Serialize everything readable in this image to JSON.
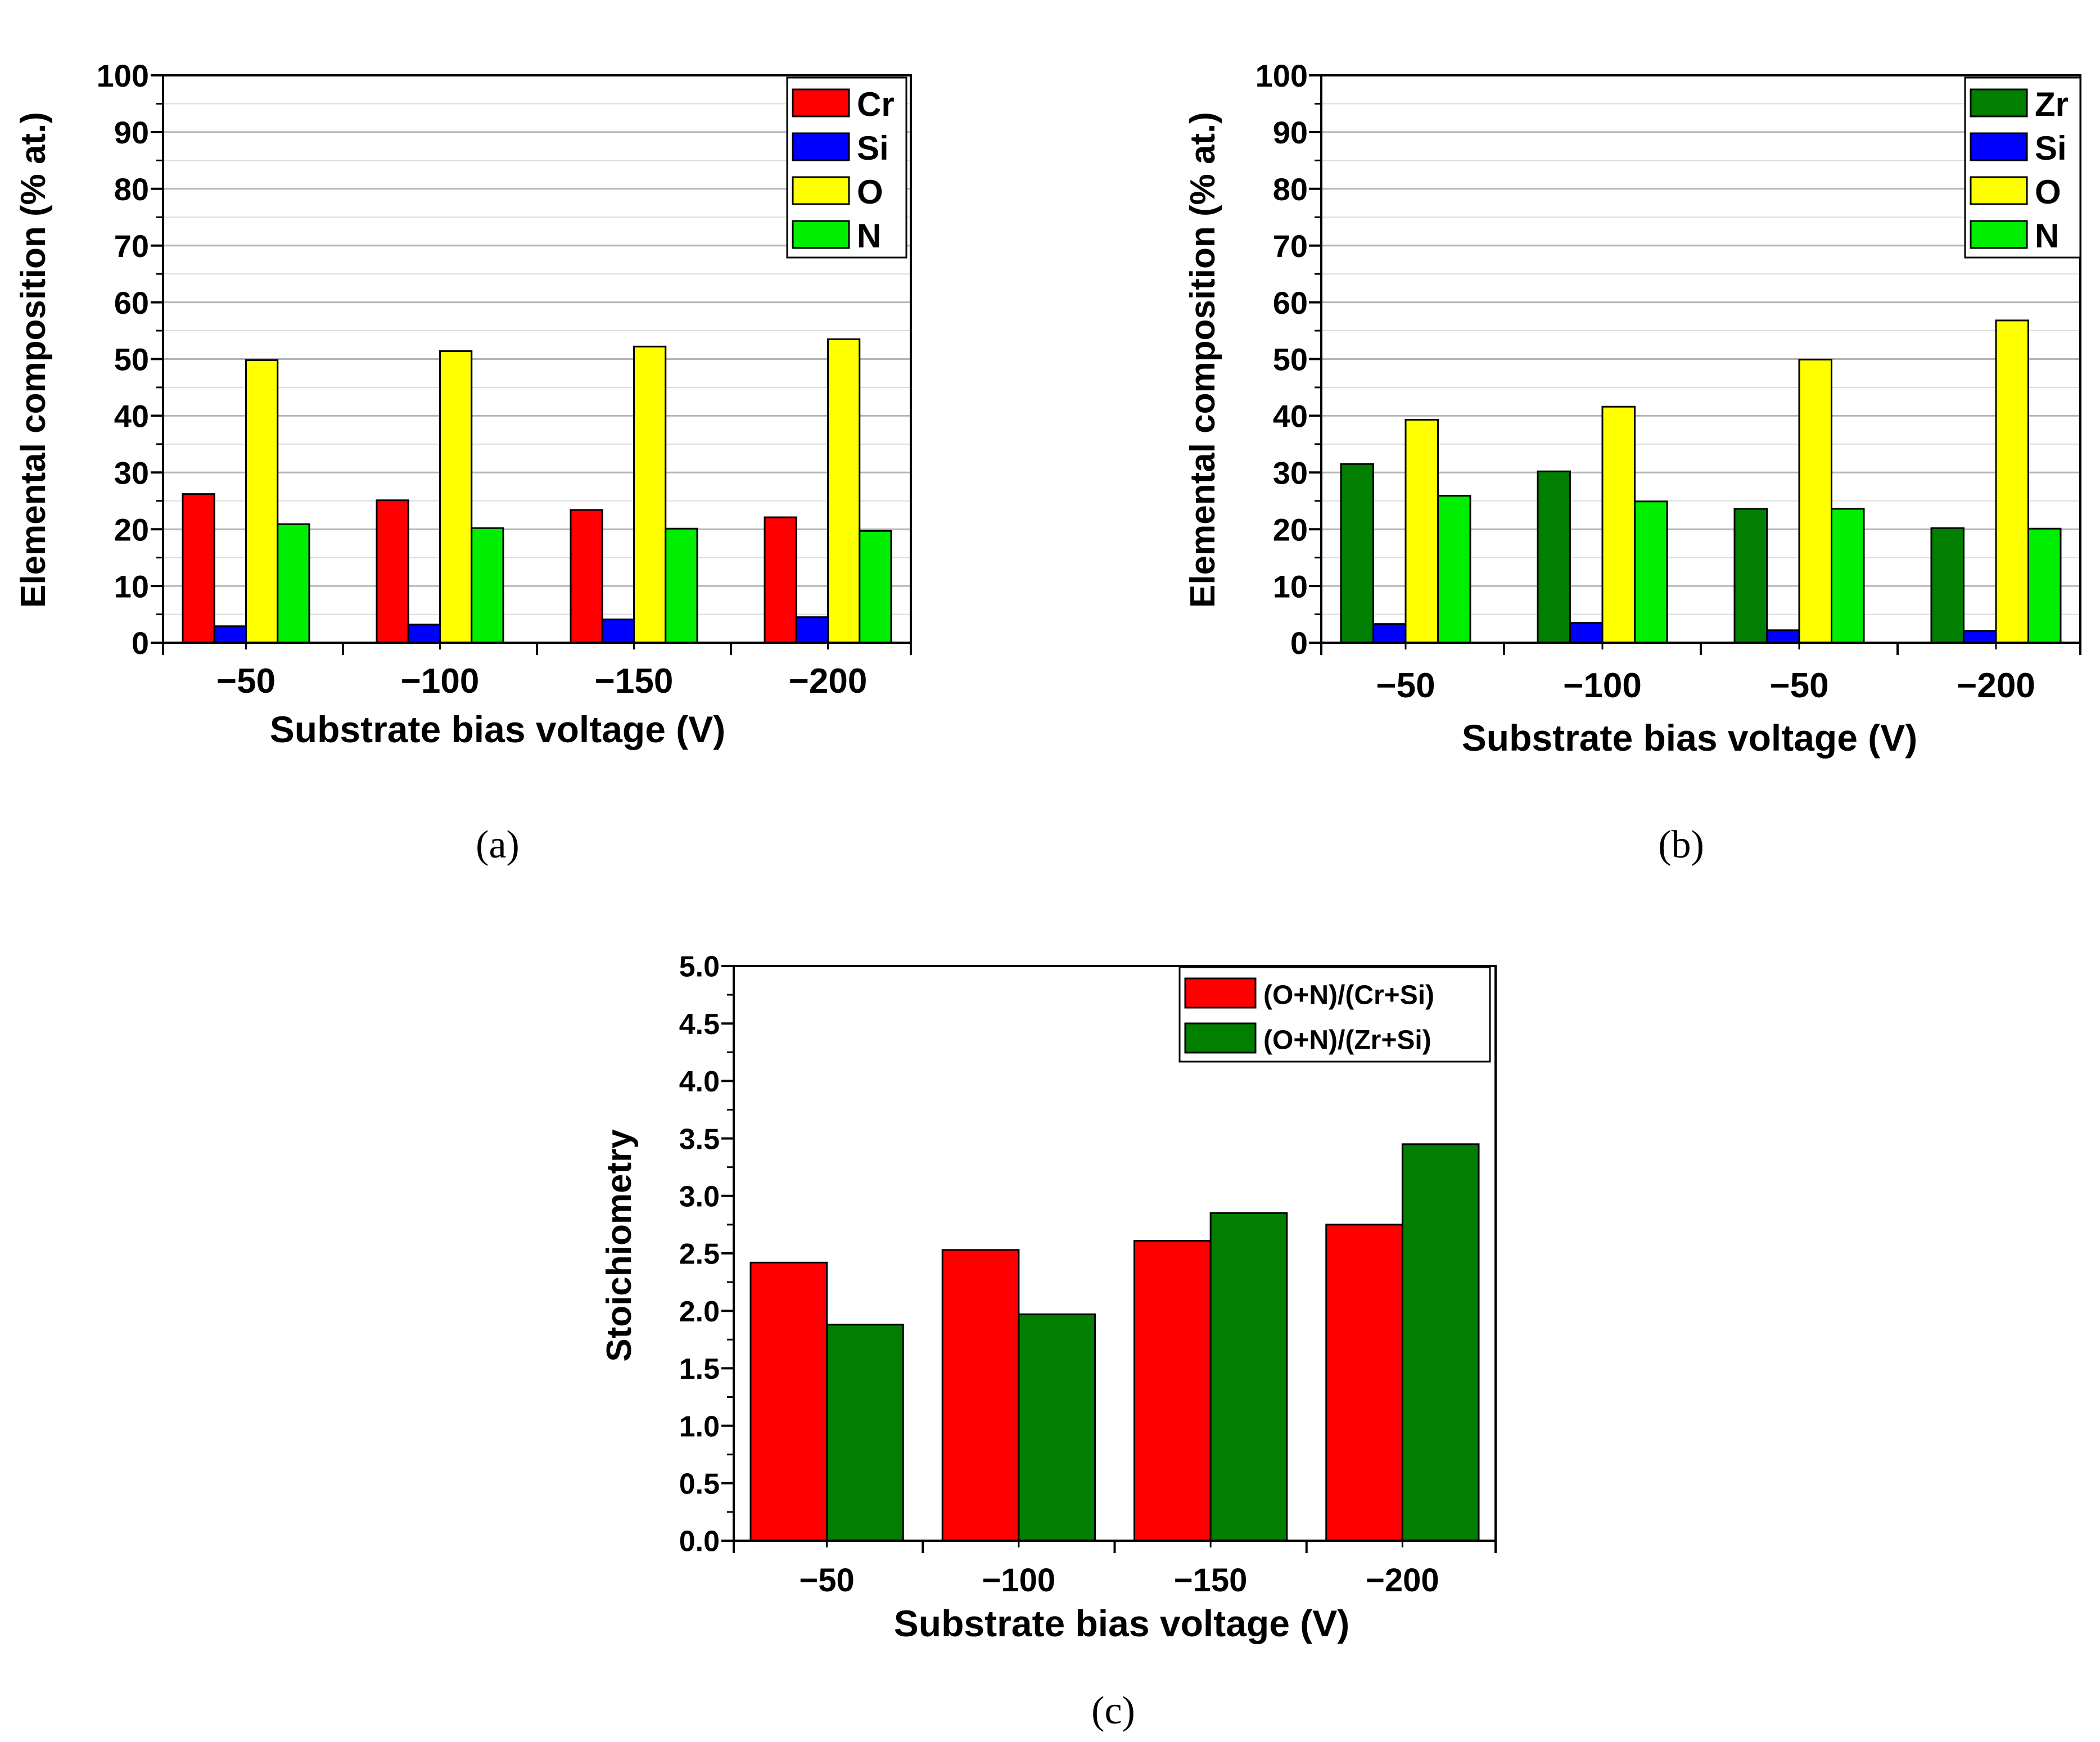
{
  "chart_data": [
    {
      "id": "a",
      "type": "bar",
      "panel_label": "(a)",
      "categories": [
        "−50",
        "−100",
        "−150",
        "−200"
      ],
      "series": [
        {
          "name": "Cr",
          "color": "#ff0000",
          "values": [
            26.2,
            25.1,
            23.4,
            22.1
          ]
        },
        {
          "name": "Si",
          "color": "#0000ff",
          "values": [
            2.9,
            3.2,
            4.1,
            4.5
          ]
        },
        {
          "name": "O",
          "color": "#ffff00",
          "values": [
            49.8,
            51.4,
            52.2,
            53.5
          ]
        },
        {
          "name": "N",
          "color": "#00ee00",
          "values": [
            20.9,
            20.2,
            20.1,
            19.7
          ]
        }
      ],
      "xlabel": "Substrate bias voltage (V)",
      "ylabel": "Elemental composition (% at.)",
      "ylim": [
        0,
        100
      ],
      "yticks": [
        "0",
        "10",
        "20",
        "30",
        "40",
        "50",
        "60",
        "70",
        "80",
        "90",
        "100"
      ],
      "legend_position": "top-right",
      "grid": true
    },
    {
      "id": "b",
      "type": "bar",
      "panel_label": "(b)",
      "categories": [
        "−50",
        "−100",
        "−50",
        "−200"
      ],
      "series": [
        {
          "name": "Zr",
          "color": "#007f00",
          "values": [
            31.5,
            30.2,
            23.6,
            20.2
          ]
        },
        {
          "name": "Si",
          "color": "#0000ff",
          "values": [
            3.3,
            3.5,
            2.2,
            2.1
          ]
        },
        {
          "name": "O",
          "color": "#ffff00",
          "values": [
            39.3,
            41.6,
            49.9,
            56.8
          ]
        },
        {
          "name": "N",
          "color": "#00ee00",
          "values": [
            25.9,
            24.9,
            23.6,
            20.1
          ]
        }
      ],
      "xlabel": "Substrate bias voltage (V)",
      "ylabel": "Elemental composition (% at.)",
      "ylim": [
        0,
        100
      ],
      "yticks": [
        "0",
        "10",
        "20",
        "30",
        "40",
        "50",
        "60",
        "70",
        "80",
        "90",
        "100"
      ],
      "legend_position": "top-right",
      "grid": true
    },
    {
      "id": "c",
      "type": "bar",
      "panel_label": "(c)",
      "categories": [
        "−50",
        "−100",
        "−150",
        "−200"
      ],
      "series": [
        {
          "name": "(O+N)/(Cr+Si)",
          "color": "#ff0000",
          "values": [
            2.42,
            2.53,
            2.61,
            2.75
          ]
        },
        {
          "name": "(O+N)/(Zr+Si)",
          "color": "#007f00",
          "values": [
            1.88,
            1.97,
            2.85,
            3.45
          ]
        }
      ],
      "xlabel": "Substrate bias voltage (V)",
      "ylabel": "Stoichiometry",
      "ylim": [
        0,
        5
      ],
      "yticks": [
        "0.0",
        "0.5",
        "1.0",
        "1.5",
        "2.0",
        "2.5",
        "3.0",
        "3.5",
        "4.0",
        "4.5",
        "5.0"
      ],
      "legend_position": "top-right",
      "grid": false
    }
  ]
}
